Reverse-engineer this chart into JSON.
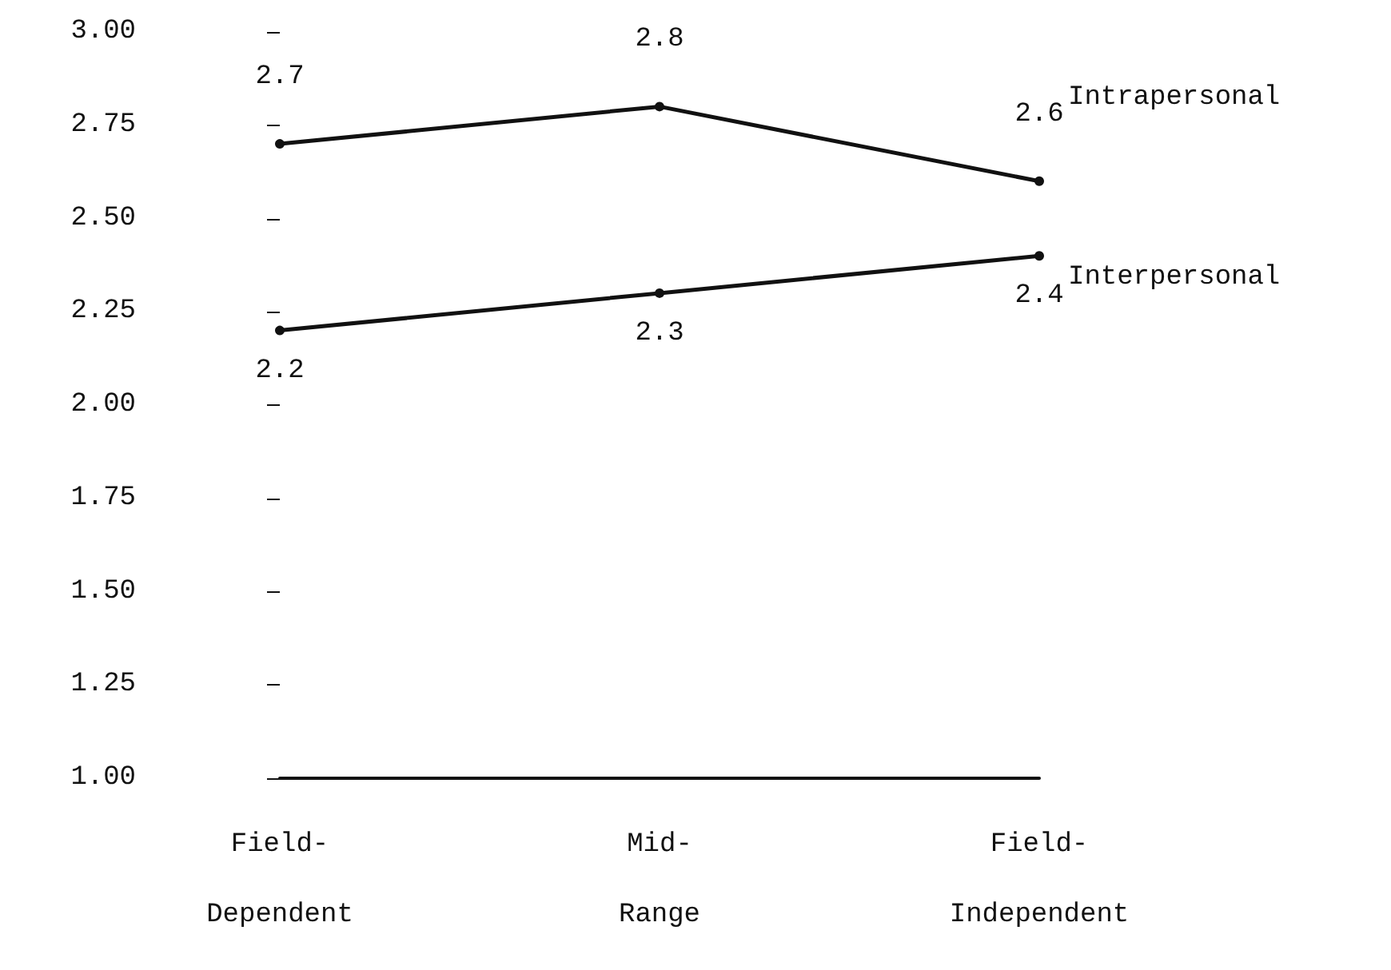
{
  "chart_data": {
    "type": "line",
    "categories": [
      "Field-\nDependent",
      "Mid-\nRange",
      "Field-\nIndependent"
    ],
    "series": [
      {
        "name": "Intrapersonal",
        "color": "#111111",
        "values": [
          2.7,
          2.8,
          2.6
        ]
      },
      {
        "name": "Interpersonal",
        "color": "#111111",
        "values": [
          2.2,
          2.3,
          2.4
        ]
      }
    ],
    "ylim": [
      1,
      3
    ],
    "yticks": [
      {
        "value": 1,
        "label": "1.00"
      },
      {
        "value": 1.25,
        "label": "1.25"
      },
      {
        "value": 1.5,
        "label": "1.50"
      },
      {
        "value": 1.75,
        "label": "1.75"
      },
      {
        "value": 2,
        "label": "2.00"
      },
      {
        "value": 2.25,
        "label": "2.25"
      },
      {
        "value": 2.5,
        "label": "2.50"
      },
      {
        "value": 2.75,
        "label": "2.75"
      },
      {
        "value": 3,
        "label": "3.00"
      }
    ],
    "data_labels": true,
    "marker": "circle",
    "line_style": "solid",
    "grid": false,
    "legend": false
  }
}
